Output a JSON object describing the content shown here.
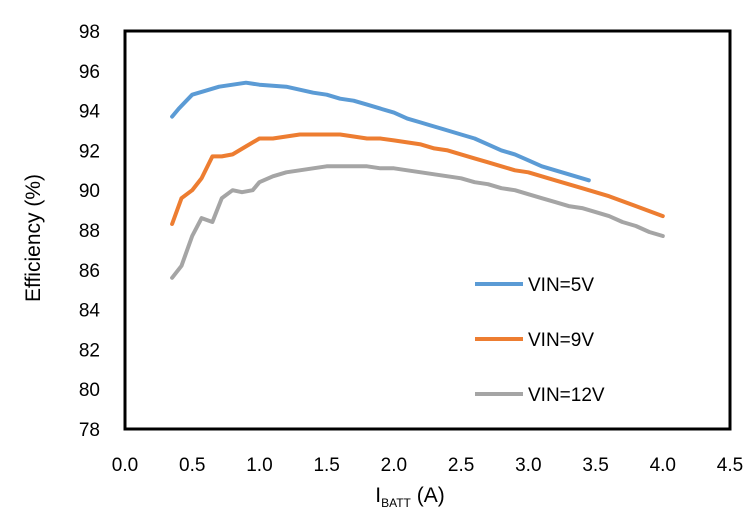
{
  "chart_data": {
    "type": "line",
    "title": "",
    "xlabel": {
      "main": "I",
      "sub": "BATT",
      "unit": " (A)"
    },
    "ylabel": "Efficiency (%)",
    "xlim": [
      0,
      4.5
    ],
    "ylim": [
      78,
      98
    ],
    "xticks": [
      "0.0",
      "0.5",
      "1.0",
      "1.5",
      "2.0",
      "2.5",
      "3.0",
      "3.5",
      "4.0",
      "4.5"
    ],
    "yticks": [
      "78",
      "80",
      "82",
      "84",
      "86",
      "88",
      "90",
      "92",
      "94",
      "96",
      "98"
    ],
    "grid": false,
    "legend_position": "lower-right",
    "series": [
      {
        "name": "VIN=5V",
        "color": "#5B9BD5",
        "x": [
          0.35,
          0.4,
          0.5,
          0.6,
          0.7,
          0.8,
          0.9,
          1.0,
          1.2,
          1.4,
          1.5,
          1.6,
          1.7,
          1.8,
          1.9,
          2.0,
          2.1,
          2.2,
          2.3,
          2.4,
          2.5,
          2.6,
          2.7,
          2.8,
          2.9,
          3.0,
          3.1,
          3.2,
          3.3,
          3.45
        ],
        "y": [
          93.7,
          94.1,
          94.8,
          95.0,
          95.2,
          95.3,
          95.4,
          95.3,
          95.2,
          94.9,
          94.8,
          94.6,
          94.5,
          94.3,
          94.1,
          93.9,
          93.6,
          93.4,
          93.2,
          93.0,
          92.8,
          92.6,
          92.3,
          92.0,
          91.8,
          91.5,
          91.2,
          91.0,
          90.8,
          90.5
        ]
      },
      {
        "name": "VIN=9V",
        "color": "#ED7D31",
        "x": [
          0.35,
          0.42,
          0.5,
          0.57,
          0.65,
          0.72,
          0.8,
          0.9,
          1.0,
          1.1,
          1.2,
          1.3,
          1.4,
          1.5,
          1.6,
          1.7,
          1.8,
          1.9,
          2.0,
          2.1,
          2.2,
          2.3,
          2.4,
          2.5,
          2.6,
          2.7,
          2.8,
          2.9,
          3.0,
          3.2,
          3.4,
          3.6,
          3.8,
          4.0
        ],
        "y": [
          88.3,
          89.6,
          90.0,
          90.6,
          91.7,
          91.7,
          91.8,
          92.2,
          92.6,
          92.6,
          92.7,
          92.8,
          92.8,
          92.8,
          92.8,
          92.7,
          92.6,
          92.6,
          92.5,
          92.4,
          92.3,
          92.1,
          92.0,
          91.8,
          91.6,
          91.4,
          91.2,
          91.0,
          90.9,
          90.5,
          90.1,
          89.7,
          89.2,
          88.7
        ]
      },
      {
        "name": "VIN=12V",
        "color": "#A5A5A5",
        "x": [
          0.35,
          0.42,
          0.5,
          0.57,
          0.65,
          0.72,
          0.8,
          0.87,
          0.95,
          1.0,
          1.1,
          1.2,
          1.3,
          1.4,
          1.5,
          1.6,
          1.7,
          1.8,
          1.9,
          2.0,
          2.1,
          2.2,
          2.3,
          2.4,
          2.5,
          2.6,
          2.7,
          2.8,
          2.9,
          3.0,
          3.1,
          3.2,
          3.3,
          3.4,
          3.5,
          3.6,
          3.7,
          3.8,
          3.9,
          4.0
        ],
        "y": [
          85.6,
          86.2,
          87.7,
          88.6,
          88.4,
          89.6,
          90.0,
          89.9,
          90.0,
          90.4,
          90.7,
          90.9,
          91.0,
          91.1,
          91.2,
          91.2,
          91.2,
          91.2,
          91.1,
          91.1,
          91.0,
          90.9,
          90.8,
          90.7,
          90.6,
          90.4,
          90.3,
          90.1,
          90.0,
          89.8,
          89.6,
          89.4,
          89.2,
          89.1,
          88.9,
          88.7,
          88.4,
          88.2,
          87.9,
          87.7
        ]
      }
    ]
  }
}
